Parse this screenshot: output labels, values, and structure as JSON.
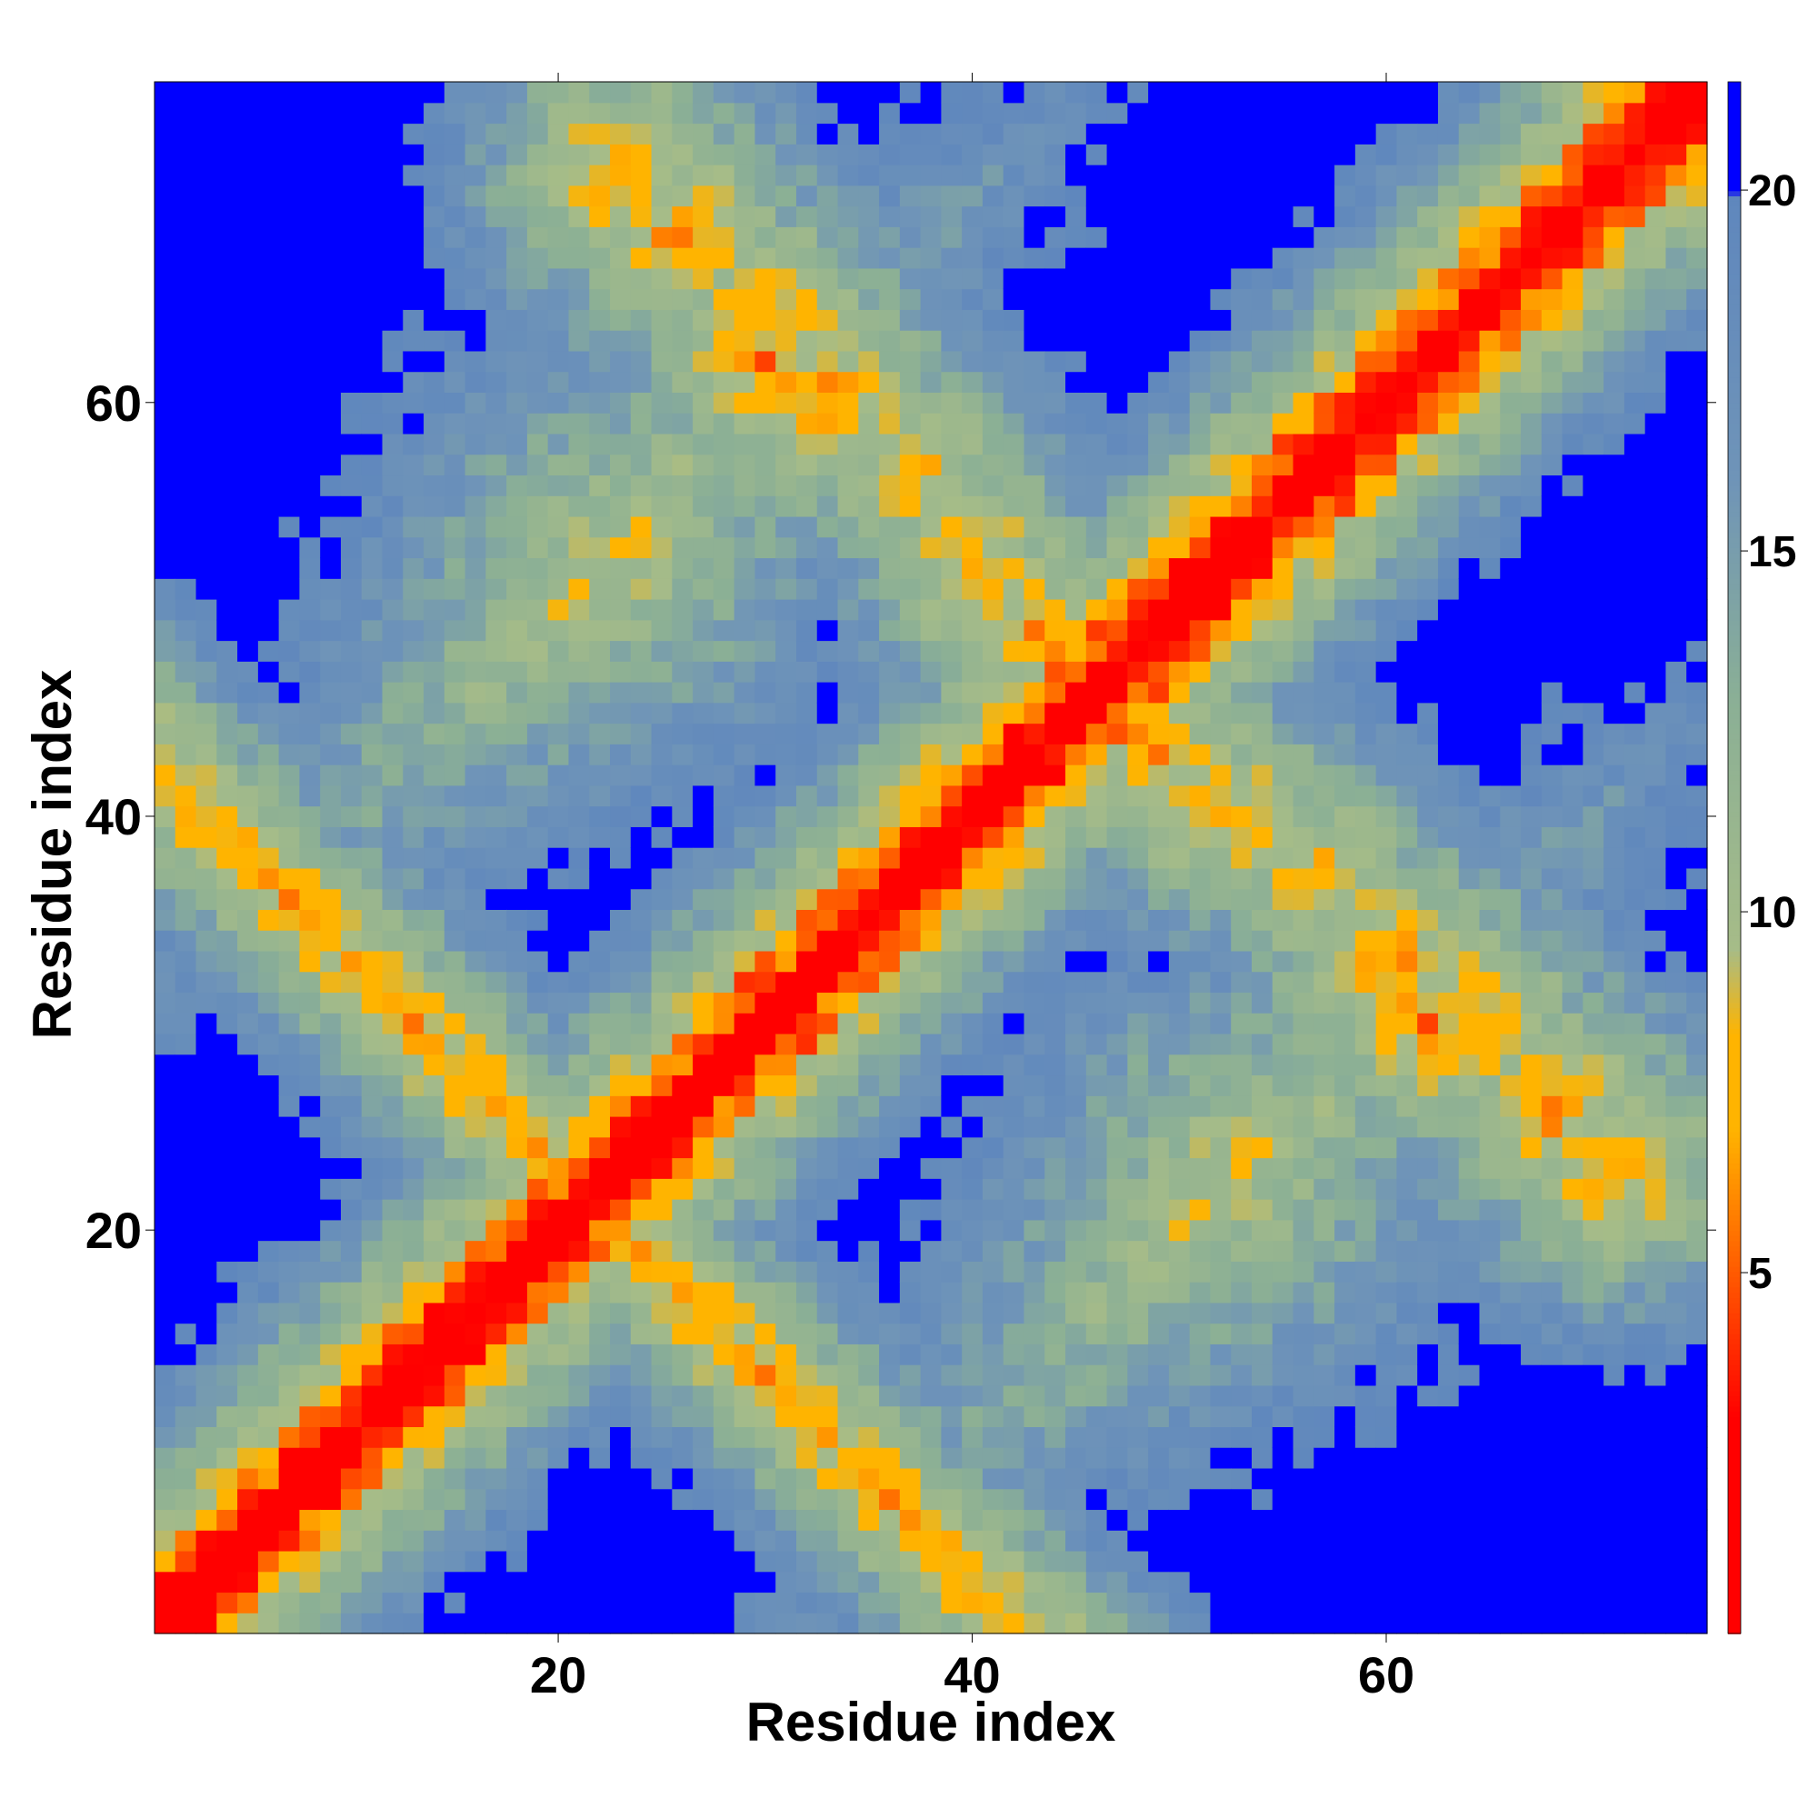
{
  "chart_data": {
    "type": "heatmap",
    "title": "",
    "xlabel": "Residue index",
    "ylabel": "Residue index",
    "n_residues": 75,
    "xlim": [
      1,
      75
    ],
    "ylim": [
      1,
      75
    ],
    "x_ticks": [
      20,
      40,
      60
    ],
    "y_ticks": [
      20,
      40,
      60
    ],
    "colorbar": {
      "ticks": [
        5,
        10,
        15,
        20
      ],
      "range": [
        0,
        21.5
      ],
      "color_stops": [
        {
          "value": 0,
          "color": "#ff0000"
        },
        {
          "value": 3,
          "color": "#ff0000"
        },
        {
          "value": 5,
          "color": "#ff5a00"
        },
        {
          "value": 7,
          "color": "#ffb400"
        },
        {
          "value": 8.3,
          "color": "#ffb400"
        },
        {
          "value": 9.5,
          "color": "#a6bc88"
        },
        {
          "value": 13,
          "color": "#8aaf96"
        },
        {
          "value": 16,
          "color": "#6f94b8"
        },
        {
          "value": 19.9,
          "color": "#5f87bd"
        },
        {
          "value": 20,
          "color": "#0000ff"
        }
      ]
    },
    "structure_description": "Symmetric residue-residue distance map with a red main diagonal (distance < 3) flanked by orange/yellow bands, an anti-diagonal band of close contacts running from (1,42) to (42,1), and large blue regions (>=20) in the off-diagonal quadrants.",
    "contact_peaks": [
      {
        "i": 23,
        "j": 71,
        "value": 6
      },
      {
        "i": 30,
        "j": 62,
        "value": 6
      },
      {
        "i": 33,
        "j": 60,
        "value": 6
      },
      {
        "i": 37,
        "j": 57,
        "value": 7
      },
      {
        "i": 41,
        "j": 51,
        "value": 7
      },
      {
        "i": 44,
        "j": 48,
        "value": 7
      },
      {
        "i": 49,
        "j": 43,
        "value": 7
      },
      {
        "i": 53,
        "j": 40,
        "value": 7
      },
      {
        "i": 57,
        "j": 37,
        "value": 7
      },
      {
        "i": 64,
        "j": 30,
        "value": 6
      },
      {
        "i": 68,
        "j": 26,
        "value": 6
      },
      {
        "i": 71,
        "j": 23,
        "value": 6
      }
    ]
  }
}
